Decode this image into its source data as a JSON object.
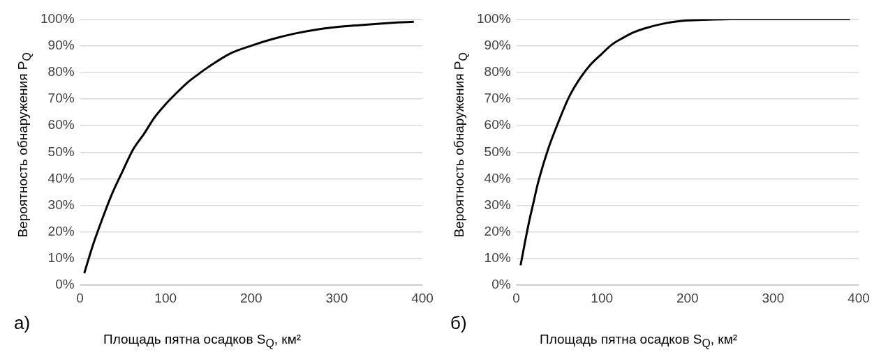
{
  "chart_data": [
    {
      "type": "line",
      "xlabel": "Площадь пятна осадков S$_{Q}$, км²",
      "ylabel": "Вероятность обнаружения P$_{Q}$",
      "annotations": [
        "а)"
      ],
      "x": [
        5,
        15,
        25,
        37,
        50,
        62,
        75,
        87,
        100,
        112,
        125,
        137,
        150,
        175,
        200,
        225,
        250,
        275,
        300,
        325,
        350,
        370,
        390
      ],
      "values": [
        4.5,
        15,
        24,
        34,
        43,
        51,
        57,
        63,
        68,
        72,
        76,
        79,
        82,
        87,
        90,
        92.5,
        94.5,
        96,
        97,
        97.7,
        98.3,
        98.7,
        99
      ],
      "color": "#000000",
      "marker": "none",
      "line_style": "solid",
      "xlim": [
        0,
        400
      ],
      "xticks": [
        0,
        100,
        200,
        300,
        400
      ],
      "ylim": [
        0,
        100
      ],
      "yticks": [
        {
          "value": 0,
          "label": "0%"
        },
        {
          "value": 10,
          "label": "10%"
        },
        {
          "value": 20,
          "label": "20%"
        },
        {
          "value": 30,
          "label": "30%"
        },
        {
          "value": 40,
          "label": "40%"
        },
        {
          "value": 50,
          "label": "50%"
        },
        {
          "value": 60,
          "label": "60%"
        },
        {
          "value": 70,
          "label": "70%"
        },
        {
          "value": 80,
          "label": "80%"
        },
        {
          "value": 90,
          "label": "90%"
        },
        {
          "value": 100,
          "label": "100%"
        }
      ],
      "grid": "y"
    },
    {
      "type": "line",
      "xlabel": "Площадь пятна осадков S$_{Q}$, км²",
      "ylabel": "Вероятность обнаружения P$_{Q}$",
      "annotations": [
        "б)"
      ],
      "x": [
        5,
        10,
        15,
        20,
        25,
        37,
        50,
        62,
        75,
        87,
        100,
        112,
        125,
        137,
        150,
        175,
        200,
        225,
        250,
        300,
        350,
        390
      ],
      "values": [
        7.5,
        16,
        24,
        31,
        38,
        51,
        62,
        71,
        78,
        83,
        87,
        90.5,
        93,
        95,
        96.5,
        98.5,
        99.5,
        99.8,
        100,
        100,
        100,
        100
      ],
      "color": "#000000",
      "marker": "none",
      "line_style": "solid",
      "xlim": [
        0,
        400
      ],
      "xticks": [
        0,
        100,
        200,
        300,
        400
      ],
      "ylim": [
        0,
        100
      ],
      "yticks": [
        {
          "value": 0,
          "label": "0%"
        },
        {
          "value": 10,
          "label": "10%"
        },
        {
          "value": 20,
          "label": "20%"
        },
        {
          "value": 30,
          "label": "30%"
        },
        {
          "value": 40,
          "label": "40%"
        },
        {
          "value": 50,
          "label": "50%"
        },
        {
          "value": 60,
          "label": "60%"
        },
        {
          "value": 70,
          "label": "70%"
        },
        {
          "value": 80,
          "label": "80%"
        },
        {
          "value": 90,
          "label": "90%"
        },
        {
          "value": 100,
          "label": "100%"
        }
      ],
      "grid": "y"
    }
  ]
}
